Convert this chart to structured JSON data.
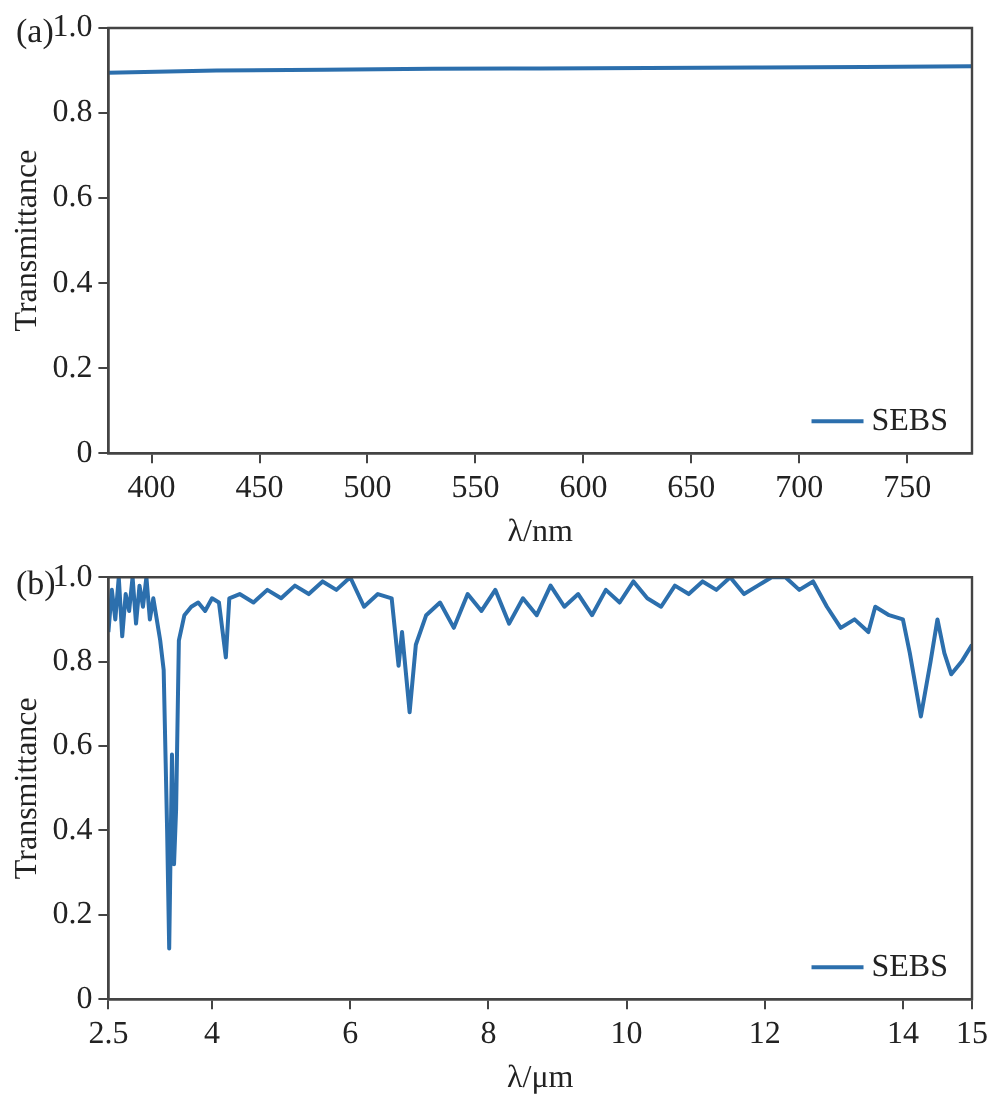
{
  "chart_data": [
    {
      "type": "line",
      "annotations": [
        "(a)"
      ],
      "xlabel": "λ/nm",
      "ylabel": "Transmittance",
      "legend": "bottom right",
      "grid": false,
      "xlim": [
        380,
        780
      ],
      "xticks": [
        400,
        450,
        500,
        550,
        600,
        650,
        700,
        750
      ],
      "ylim": [
        0,
        1
      ],
      "yticks": [
        0,
        0.2,
        0.4,
        0.6,
        0.8,
        {
          "value": 1,
          "label": "1.0"
        }
      ],
      "series": [
        {
          "name": "SEBS",
          "color": "#2c6fad",
          "x": [
            380,
            430,
            480,
            530,
            580,
            630,
            680,
            730,
            780
          ],
          "values": [
            0.895,
            0.9,
            0.902,
            0.904,
            0.905,
            0.906,
            0.907,
            0.908,
            0.91
          ]
        }
      ]
    },
    {
      "type": "line",
      "annotations": [
        "(b)"
      ],
      "xlabel": "λ/μm",
      "ylabel": "Transmittance",
      "legend": "bottom right",
      "grid": false,
      "xlim": [
        2.5,
        15
      ],
      "xticks": [
        2.5,
        4,
        6,
        8,
        10,
        12,
        14,
        15
      ],
      "ylim": [
        0,
        1
      ],
      "yticks": [
        0,
        0.2,
        0.4,
        0.6,
        0.8,
        {
          "value": 1,
          "label": "1.0"
        }
      ],
      "series": [
        {
          "name": "SEBS",
          "color": "#2c6fad",
          "x": [
            2.5,
            2.55,
            2.6,
            2.65,
            2.7,
            2.75,
            2.8,
            2.85,
            2.9,
            2.95,
            3.0,
            3.05,
            3.1,
            3.15,
            3.2,
            3.25,
            3.3,
            3.35,
            3.38,
            3.42,
            3.45,
            3.48,
            3.52,
            3.56,
            3.6,
            3.7,
            3.8,
            3.9,
            4.0,
            4.1,
            4.2,
            4.25,
            4.4,
            4.6,
            4.8,
            5.0,
            5.2,
            5.4,
            5.6,
            5.8,
            6.0,
            6.2,
            6.4,
            6.6,
            6.7,
            6.75,
            6.86,
            6.95,
            7.1,
            7.3,
            7.5,
            7.7,
            7.9,
            8.1,
            8.3,
            8.5,
            8.7,
            8.9,
            9.1,
            9.3,
            9.5,
            9.7,
            9.9,
            10.1,
            10.3,
            10.5,
            10.7,
            10.9,
            11.1,
            11.3,
            11.5,
            11.7,
            11.9,
            12.1,
            12.3,
            12.5,
            12.7,
            12.9,
            13.1,
            13.3,
            13.5,
            13.6,
            13.8,
            14.0,
            14.1,
            14.26,
            14.4,
            14.5,
            14.6,
            14.7,
            14.85,
            15
          ],
          "values": [
            0.87,
            0.97,
            0.9,
            1.0,
            0.86,
            0.96,
            0.92,
            1.0,
            0.89,
            0.98,
            0.93,
            1.0,
            0.9,
            0.95,
            0.9,
            0.85,
            0.78,
            0.4,
            0.12,
            0.58,
            0.32,
            0.45,
            0.85,
            0.88,
            0.91,
            0.93,
            0.94,
            0.92,
            0.95,
            0.94,
            0.81,
            0.95,
            0.96,
            0.94,
            0.97,
            0.95,
            0.98,
            0.96,
            0.99,
            0.97,
            1.0,
            0.93,
            0.96,
            0.95,
            0.79,
            0.87,
            0.68,
            0.84,
            0.91,
            0.94,
            0.88,
            0.96,
            0.92,
            0.97,
            0.89,
            0.95,
            0.91,
            0.98,
            0.93,
            0.96,
            0.91,
            0.97,
            0.94,
            0.99,
            0.95,
            0.93,
            0.98,
            0.96,
            0.99,
            0.97,
            1.0,
            0.96,
            0.98,
            1.0,
            1.0,
            0.97,
            0.99,
            0.93,
            0.88,
            0.9,
            0.87,
            0.93,
            0.91,
            0.9,
            0.82,
            0.67,
            0.8,
            0.9,
            0.82,
            0.77,
            0.8,
            0.84
          ]
        }
      ]
    }
  ]
}
